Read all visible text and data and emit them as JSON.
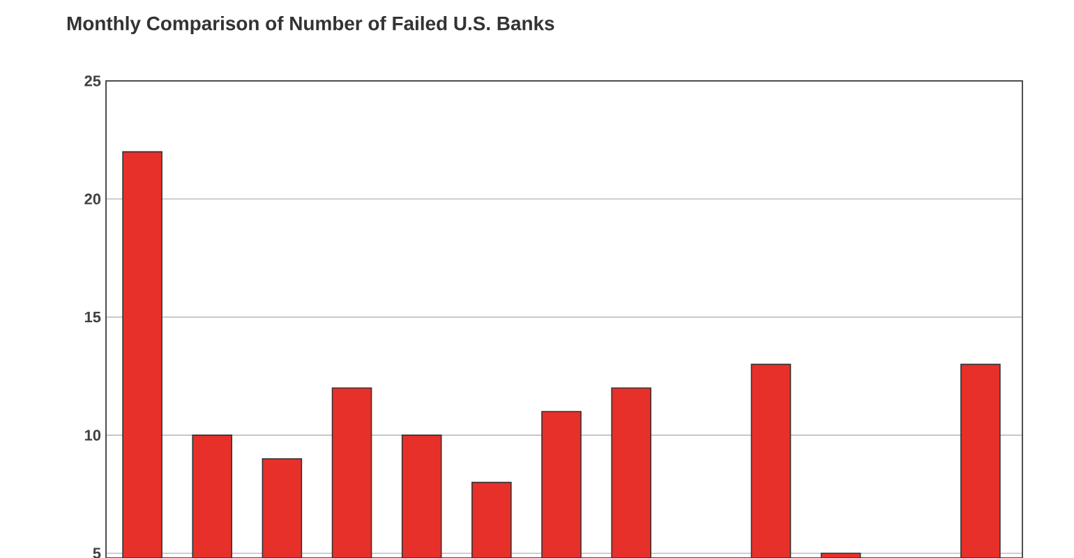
{
  "chart_data": {
    "type": "bar",
    "title": "Monthly Comparison of Number of Failed U.S. Banks",
    "categories": [
      null,
      null,
      null,
      null,
      null,
      null,
      null,
      null,
      null,
      null,
      null,
      null,
      null
    ],
    "values": [
      22,
      10,
      9,
      12,
      10,
      8,
      11,
      12,
      null,
      13,
      5,
      null,
      13
    ],
    "color": "#e8302a",
    "ylim": [
      4.8,
      25
    ],
    "yticks": [
      5,
      10,
      15,
      20,
      25
    ],
    "grid": "y",
    "tick_labels": "y"
  }
}
